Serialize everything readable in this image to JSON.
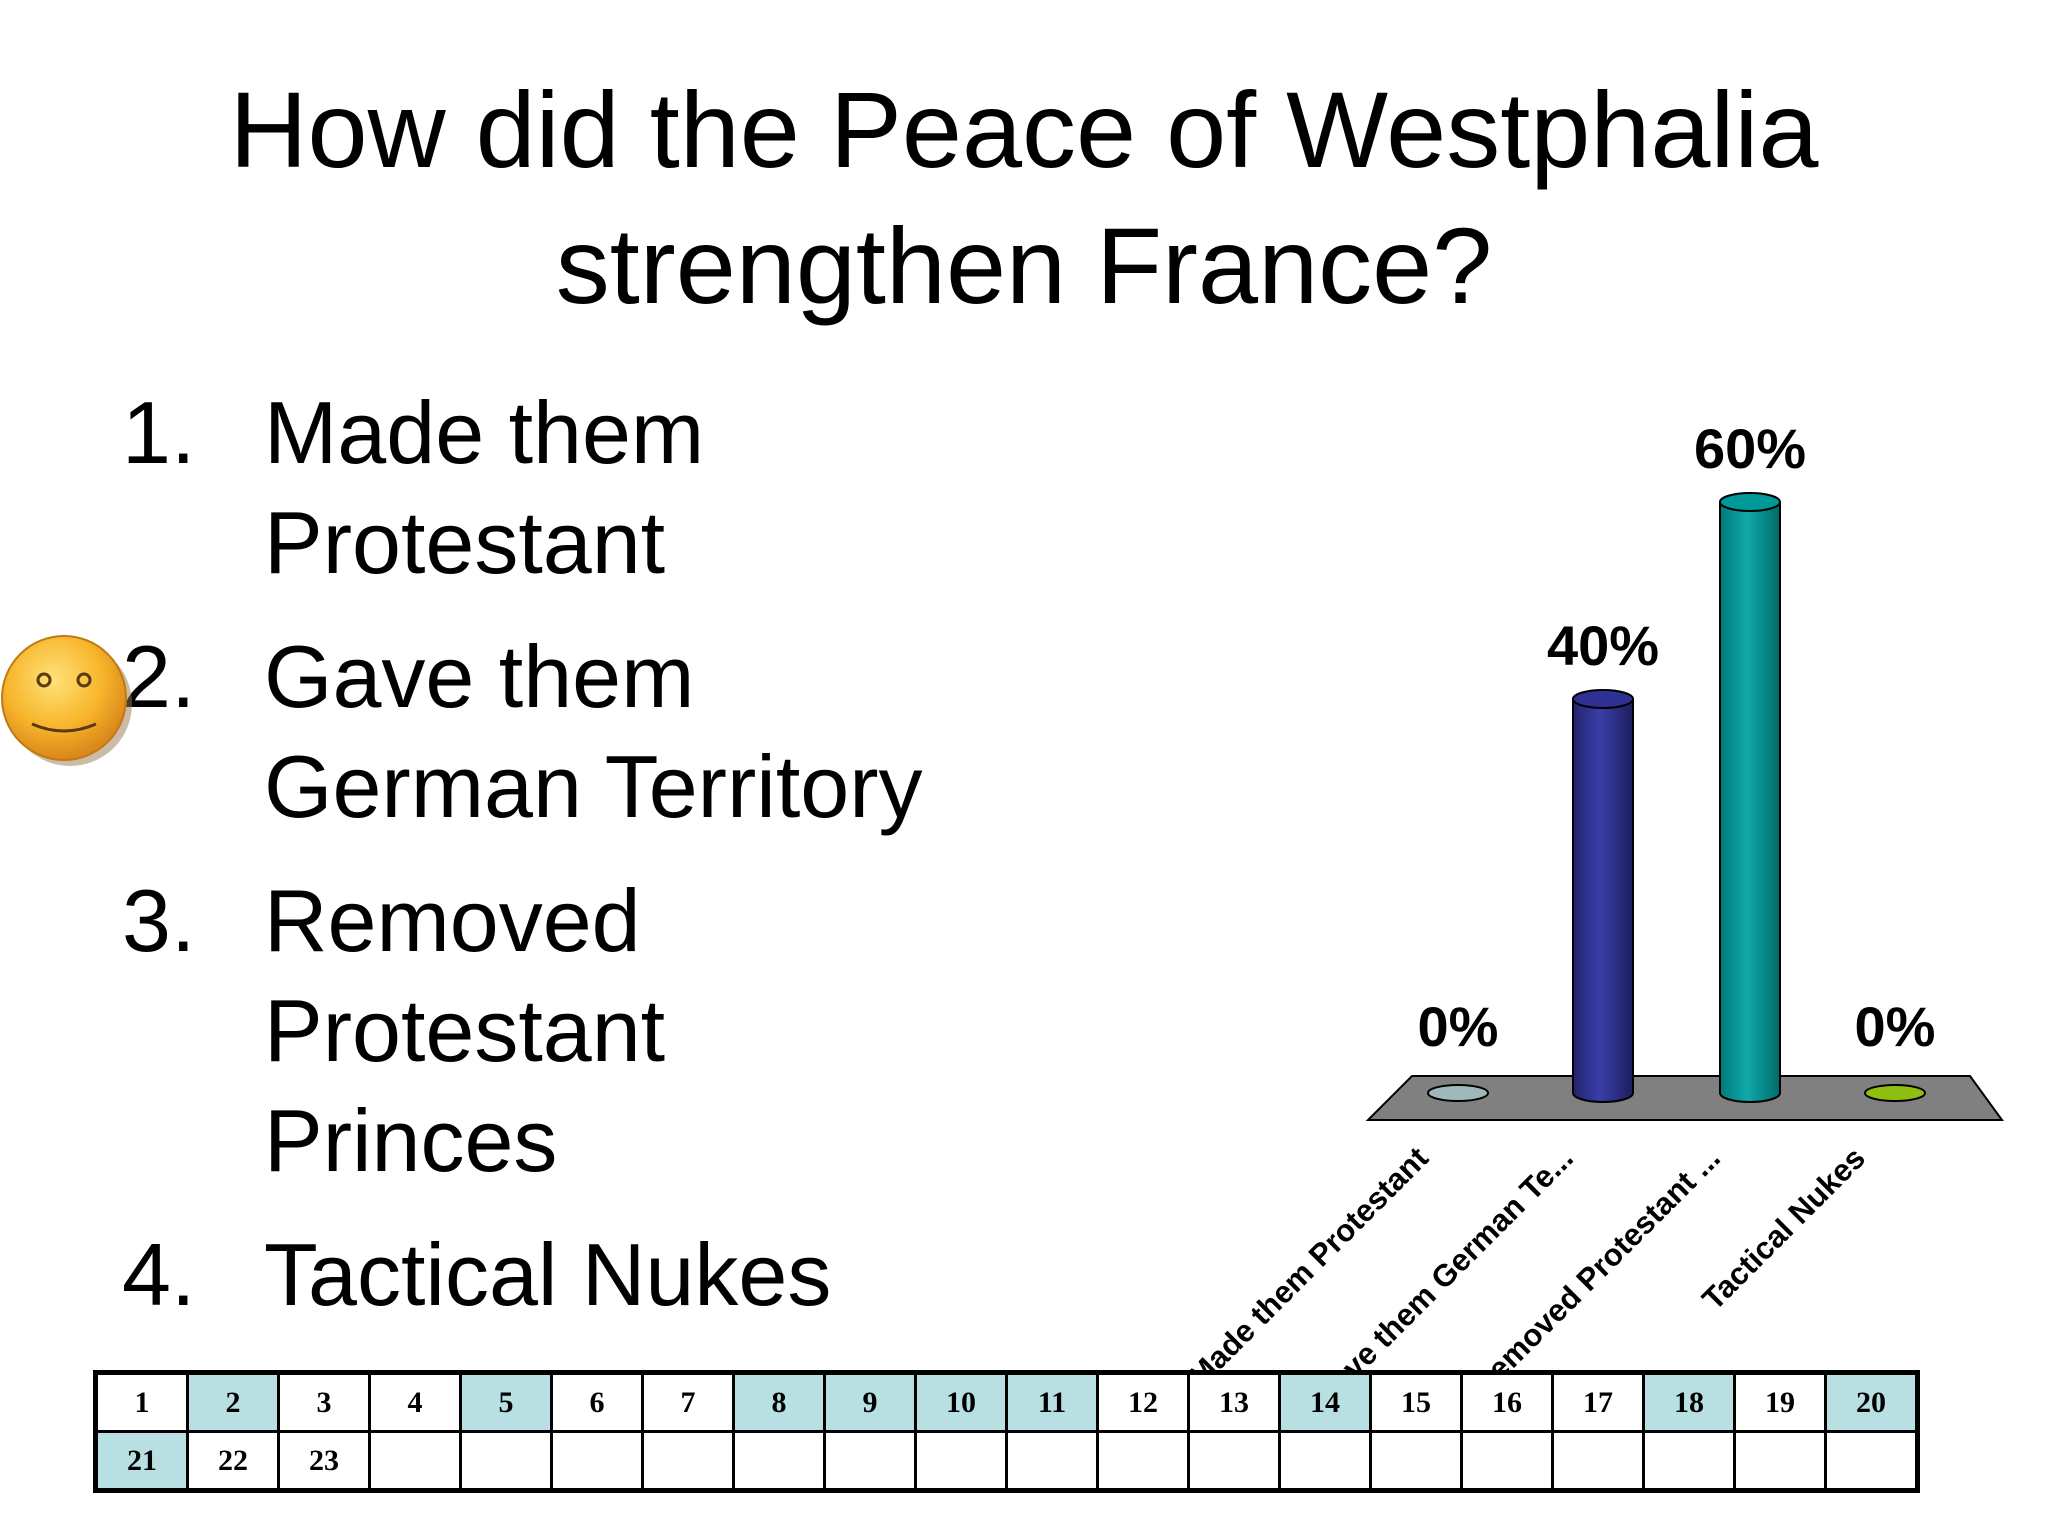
{
  "title": "How did the Peace of Westphalia strengthen France?",
  "options": [
    {
      "num": "1.",
      "text": "Made them Protestant"
    },
    {
      "num": "2.",
      "text": "Gave them German Territory"
    },
    {
      "num": "3.",
      "text": "Removed Protestant Princes"
    },
    {
      "num": "4.",
      "text": "Tactical Nukes"
    }
  ],
  "selected_marker": {
    "option_index": 1,
    "icon": "smiley-face-icon"
  },
  "chart_data": {
    "type": "bar",
    "categories": [
      "Made them Protestant",
      "Gave them German Te...",
      "Removed Protestant ...",
      "Tactical Nukes"
    ],
    "values": [
      0,
      40,
      60,
      0
    ],
    "value_labels": [
      "0%",
      "40%",
      "60%",
      "0%"
    ],
    "colors": [
      "#9fb8bc",
      "#2e3192",
      "#009999",
      "#8fbf10"
    ],
    "ylim": [
      0,
      60
    ],
    "grid": false,
    "legend": "none",
    "style": "3d-cylinder"
  },
  "response_grid": {
    "rows": [
      [
        {
          "label": "1",
          "on": false
        },
        {
          "label": "2",
          "on": true
        },
        {
          "label": "3",
          "on": false
        },
        {
          "label": "4",
          "on": false
        },
        {
          "label": "5",
          "on": true
        },
        {
          "label": "6",
          "on": false
        },
        {
          "label": "7",
          "on": false
        },
        {
          "label": "8",
          "on": true
        },
        {
          "label": "9",
          "on": true
        },
        {
          "label": "10",
          "on": true
        },
        {
          "label": "11",
          "on": true
        },
        {
          "label": "12",
          "on": false
        },
        {
          "label": "13",
          "on": false
        },
        {
          "label": "14",
          "on": true
        },
        {
          "label": "15",
          "on": false
        },
        {
          "label": "16",
          "on": false
        },
        {
          "label": "17",
          "on": false
        },
        {
          "label": "18",
          "on": true
        },
        {
          "label": "19",
          "on": false
        },
        {
          "label": "20",
          "on": true
        }
      ],
      [
        {
          "label": "21",
          "on": true
        },
        {
          "label": "22",
          "on": false
        },
        {
          "label": "23",
          "on": false
        },
        {
          "label": "",
          "on": false
        },
        {
          "label": "",
          "on": false
        },
        {
          "label": "",
          "on": false
        },
        {
          "label": "",
          "on": false
        },
        {
          "label": "",
          "on": false
        },
        {
          "label": "",
          "on": false
        },
        {
          "label": "",
          "on": false
        },
        {
          "label": "",
          "on": false
        },
        {
          "label": "",
          "on": false
        },
        {
          "label": "",
          "on": false
        },
        {
          "label": "",
          "on": false
        },
        {
          "label": "",
          "on": false
        },
        {
          "label": "",
          "on": false
        },
        {
          "label": "",
          "on": false
        },
        {
          "label": "",
          "on": false
        },
        {
          "label": "",
          "on": false
        },
        {
          "label": "",
          "on": false
        }
      ]
    ]
  }
}
